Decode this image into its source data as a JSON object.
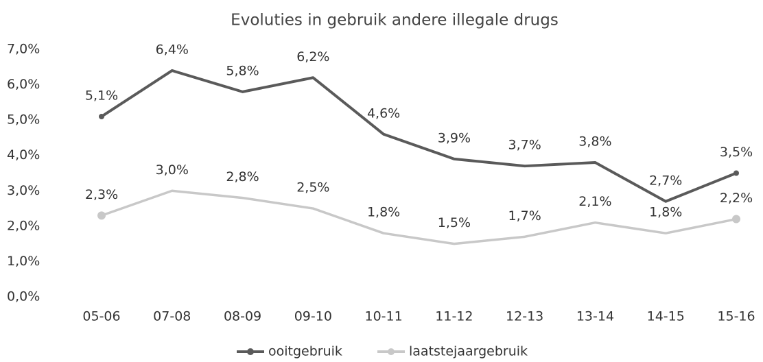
{
  "chart_data": {
    "type": "line",
    "title": "Evoluties in gebruik andere illegale drugs",
    "categories": [
      "05-06",
      "07-08",
      "08-09",
      "09-10",
      "10-11",
      "11-12",
      "12-13",
      "13-14",
      "14-15",
      "15-16"
    ],
    "series": [
      {
        "name": "ooitgebruik",
        "color": "#5a5a5a",
        "values": [
          5.1,
          6.4,
          5.8,
          6.2,
          4.6,
          3.9,
          3.7,
          3.8,
          2.7,
          3.5
        ],
        "value_labels": [
          "5,1%",
          "6,4%",
          "5,8%",
          "6,2%",
          "4,6%",
          "3,9%",
          "3,7%",
          "3,8%",
          "2,7%",
          "3,5%"
        ]
      },
      {
        "name": "laatstejaargebruik",
        "color": "#c8c8c8",
        "values": [
          2.3,
          3.0,
          2.8,
          2.5,
          1.8,
          1.5,
          1.7,
          2.1,
          1.8,
          2.2
        ],
        "value_labels": [
          "2,3%",
          "3,0%",
          "2,8%",
          "2,5%",
          "1,8%",
          "1,5%",
          "1,7%",
          "2,1%",
          "1,8%",
          "2,2%"
        ]
      }
    ],
    "ylim": [
      0,
      7
    ],
    "yticks": [
      {
        "value": 0,
        "label": "0,0%"
      },
      {
        "value": 1,
        "label": "1,0%"
      },
      {
        "value": 2,
        "label": "2,0%"
      },
      {
        "value": 3,
        "label": "3,0%"
      },
      {
        "value": 4,
        "label": "4,0%"
      },
      {
        "value": 5,
        "label": "5,0%"
      },
      {
        "value": 6,
        "label": "6,0%"
      },
      {
        "value": 7,
        "label": "7,0%"
      }
    ],
    "grid": false,
    "legend": "bottom"
  }
}
